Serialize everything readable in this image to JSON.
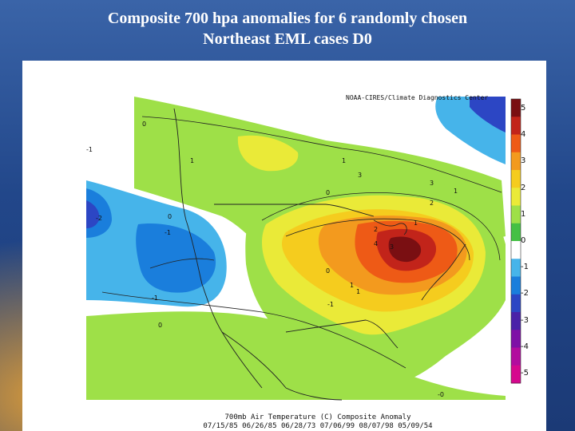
{
  "slide": {
    "title_line1": "Composite 700 hpa anomalies for 6 randomly chosen",
    "title_line2": "Northeast EML cases D0"
  },
  "map": {
    "credit": "NOAA-CIRES/Climate Diagnostics Center",
    "caption_line1": "700mb Air Temperature (C) Composite Anomaly",
    "caption_line2": "07/15/85 06/26/85 06/28/73 07/06/99 08/07/98 05/09/54",
    "colorbar": {
      "labels": [
        "5",
        "4",
        "3",
        "2",
        "1",
        "0",
        "-1",
        "-2",
        "-3",
        "-4",
        "-5"
      ],
      "colors": [
        "#7a0f12",
        "#c2241a",
        "#ee5a16",
        "#f39a1e",
        "#f5cc1e",
        "#eaea38",
        "#9ee048",
        "#44c044",
        "#ffffff",
        "#46b4ea",
        "#1a7edc",
        "#2c46c4",
        "#4a22a8",
        "#7e10a6",
        "#b20c9e",
        "#d6088e"
      ]
    },
    "contour_labels": [
      "0",
      "-1",
      "1",
      "1",
      "3",
      "3",
      "2",
      "1",
      "0",
      "-2",
      "-1",
      "0",
      "3",
      "1",
      "4",
      "1",
      "-1",
      "0",
      "-1",
      "-0",
      "0",
      "1",
      "2"
    ]
  }
}
